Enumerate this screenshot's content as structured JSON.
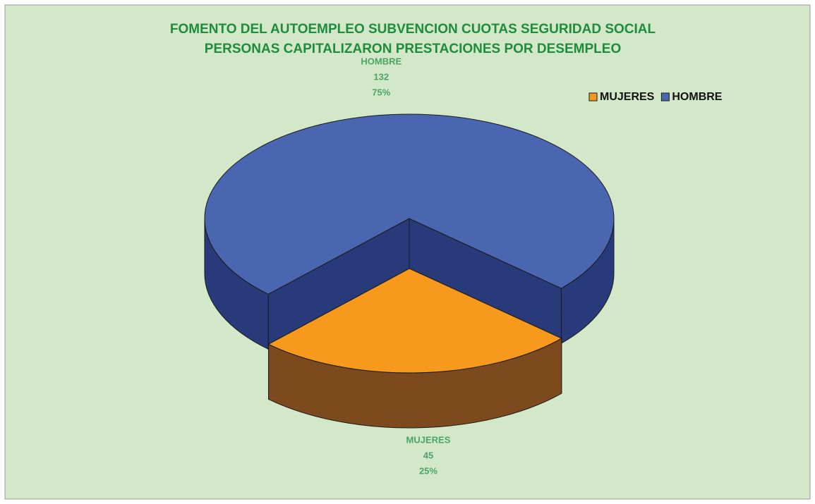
{
  "chart_data": {
    "type": "pie3d",
    "title_lines": [
      "FOMENTO DEL AUTOEMPLEO SUBVENCION CUOTAS SEGURIDAD SOCIAL",
      "PERSONAS CAPITALIZARON PRESTACIONES POR DESEMPLEO"
    ],
    "categories": [
      "MUJERES",
      "HOMBRE"
    ],
    "values": [
      45,
      132
    ],
    "percent_labels": [
      "25%",
      "75%"
    ],
    "colors": [
      "#f7991c",
      "#4a66b0"
    ],
    "side_colors": [
      "#7d4a1e",
      "#283a7a"
    ],
    "exploded": [
      true,
      false
    ],
    "legend": "top-right"
  }
}
